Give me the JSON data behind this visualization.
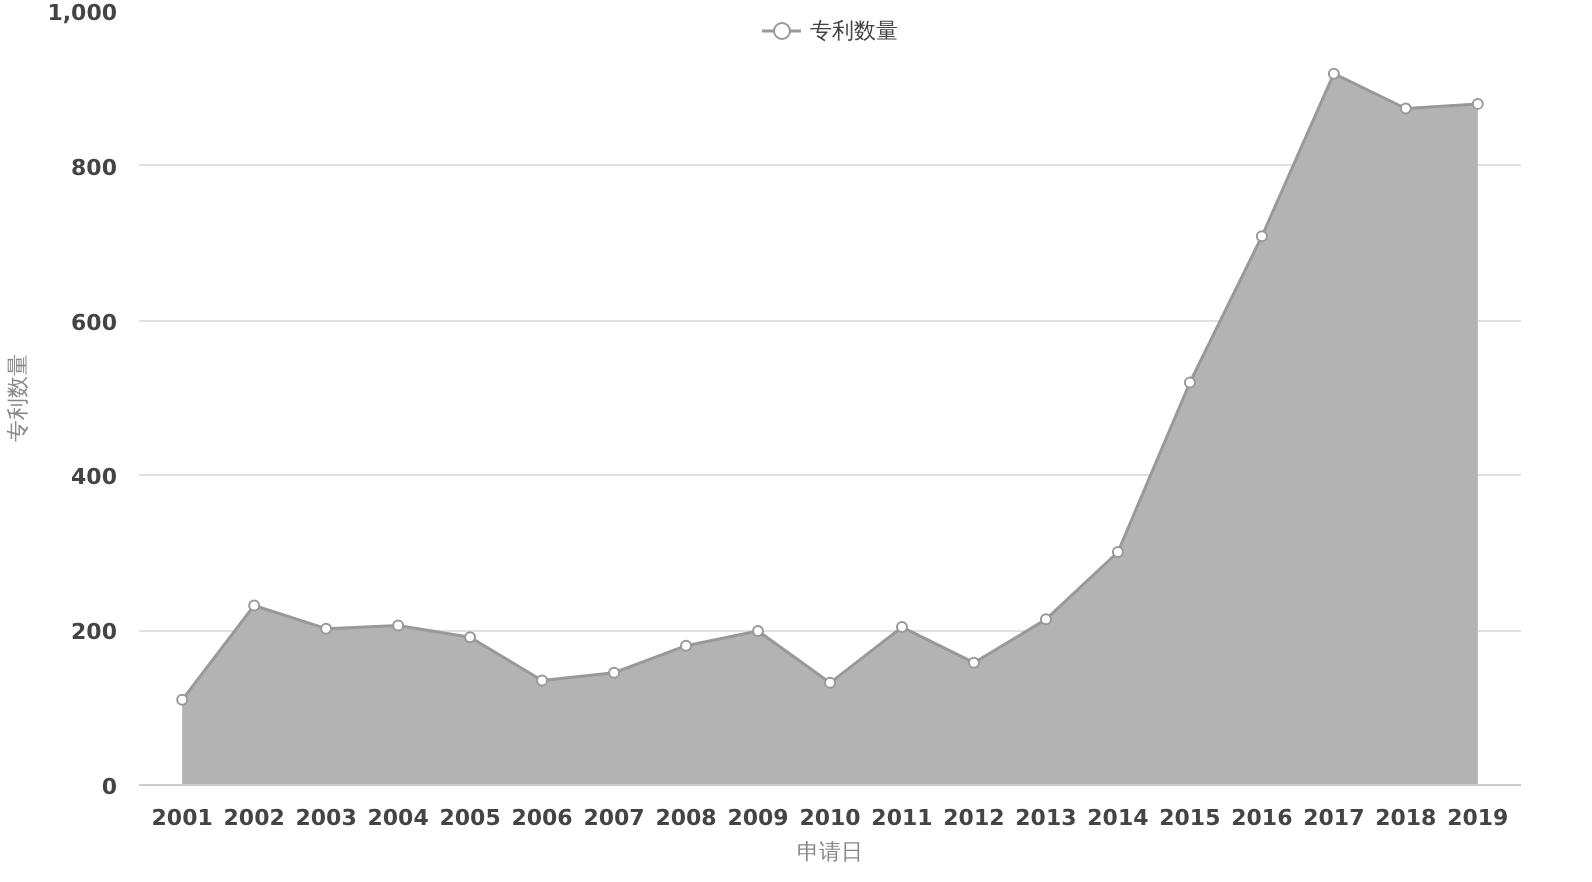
{
  "chart_data": {
    "type": "area",
    "xlabel": "申请日",
    "ylabel": "专利数量",
    "categories": [
      "2001",
      "2002",
      "2003",
      "2004",
      "2005",
      "2006",
      "2007",
      "2008",
      "2009",
      "2010",
      "2011",
      "2012",
      "2013",
      "2014",
      "2015",
      "2016",
      "2017",
      "2018",
      "2019"
    ],
    "series": [
      {
        "name": "专利数量",
        "color": "#b3b3b3",
        "values": [
          110,
          232,
          202,
          206,
          191,
          135,
          145,
          180,
          199,
          132,
          204,
          158,
          214,
          301,
          520,
          709,
          919,
          874,
          880
        ]
      }
    ],
    "ylim": [
      0,
      1000
    ],
    "yticks": [
      0,
      200,
      400,
      600,
      800,
      {
        "value": 1000,
        "label": "1,000"
      }
    ],
    "grid": "y",
    "legend": "top",
    "marker": "circle"
  }
}
